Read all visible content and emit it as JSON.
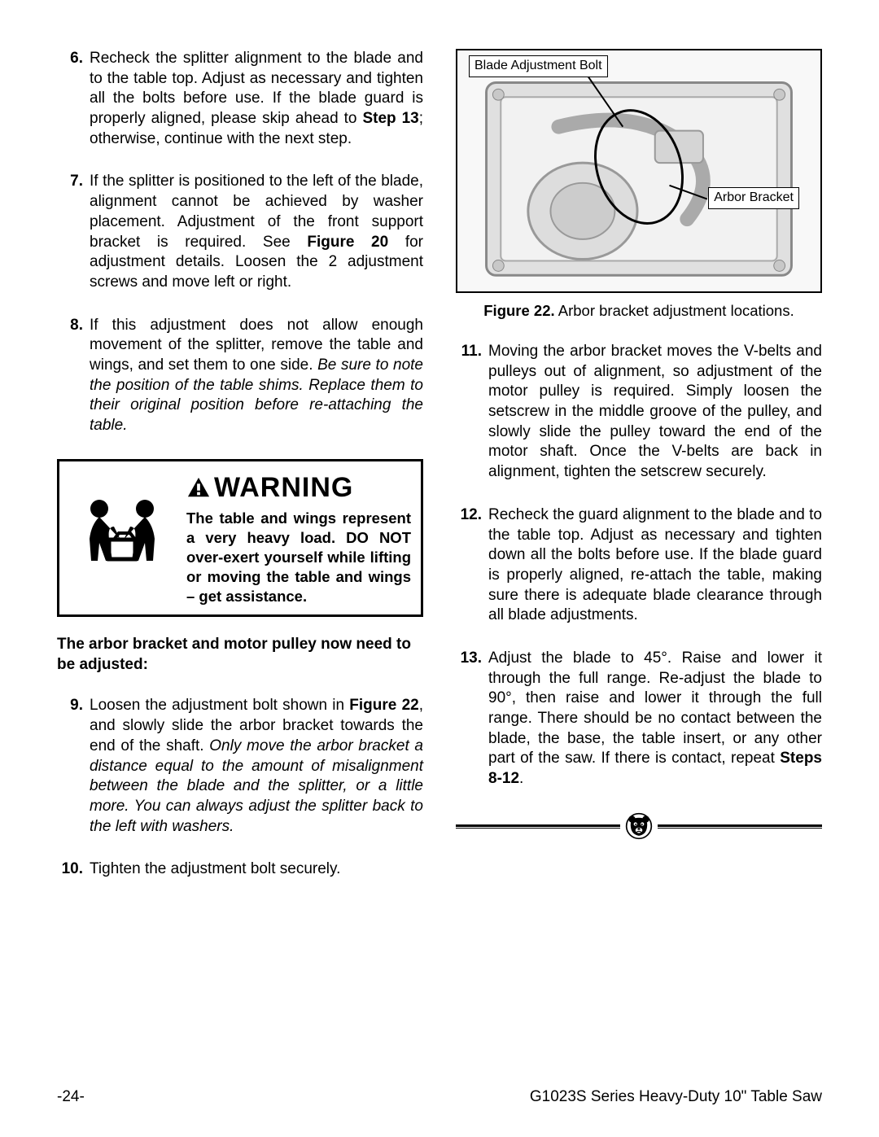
{
  "left": {
    "steps": [
      {
        "n": "6.",
        "parts": [
          {
            "t": "Recheck the splitter alignment to the blade and to the table top. Adjust as necessary and tighten all the bolts before use. If the blade guard is properly aligned, please skip ahead to "
          },
          {
            "t": "Step 13",
            "b": true
          },
          {
            "t": "; otherwise, continue with the next step."
          }
        ]
      },
      {
        "n": "7.",
        "parts": [
          {
            "t": "If the splitter is positioned to the left of the blade, alignment cannot be achieved by washer placement. Adjustment of the front support bracket is required. See "
          },
          {
            "t": "Figure 20",
            "b": true
          },
          {
            "t": " for adjustment details. Loosen the 2 adjustment screws and move left or right."
          }
        ]
      },
      {
        "n": "8.",
        "parts": [
          {
            "t": "If this adjustment does not allow enough movement of the splitter, remove the table and wings, and set them to one side. "
          },
          {
            "t": "Be sure to note the position of the table shims. Replace them to their original position before re-attaching the table.",
            "i": true
          }
        ]
      }
    ],
    "warning": {
      "title": "WARNING",
      "body": "The table and wings represent a very heavy load. DO NOT over-exert yourself while lifting or moving the table and wings – get assistance."
    },
    "inter": "The arbor bracket and motor pulley now need to be adjusted:",
    "steps2": [
      {
        "n": "9.",
        "parts": [
          {
            "t": "Loosen the adjustment bolt shown in "
          },
          {
            "t": "Figure 22",
            "b": true
          },
          {
            "t": ", and slowly slide the arbor bracket towards the end of the shaft. "
          },
          {
            "t": "Only move the arbor bracket a distance equal to the amount of misalignment between the blade and the splitter, or a little more. You can always adjust the splitter back to the left with washers.",
            "i": true
          }
        ]
      },
      {
        "n": "10.",
        "parts": [
          {
            "t": "Tighten the adjustment bolt securely."
          }
        ]
      }
    ]
  },
  "right": {
    "figure": {
      "label1": "Blade Adjustment Bolt",
      "label2": "Arbor Bracket",
      "caption_prefix": "Figure 22.",
      "caption_rest": " Arbor bracket adjustment locations."
    },
    "steps": [
      {
        "n": "11.",
        "parts": [
          {
            "t": "Moving the arbor bracket moves the V-belts and pulleys out of alignment, so adjustment of the motor pulley is required. Simply loosen the setscrew in the middle groove of the pulley, and slowly slide the pulley toward the end of the motor shaft. Once the V-belts are back in alignment, tighten the setscrew securely."
          }
        ]
      },
      {
        "n": "12.",
        "parts": [
          {
            "t": "Recheck the guard alignment to the blade and to the table top. Adjust as necessary and tighten down all the bolts before use. If the blade guard is properly aligned, re-attach the table, making sure there is adequate blade clearance through all blade adjustments."
          }
        ]
      },
      {
        "n": "13.",
        "parts": [
          {
            "t": "Adjust the blade to 45°. Raise and lower it through the full range. Re-adjust the blade to 90°, then raise and lower it through the full range. There should be no contact between the blade, the base, the table insert, or any other part of the saw. If there is contact, repeat "
          },
          {
            "t": "Steps 8-12",
            "b": true
          },
          {
            "t": "."
          }
        ]
      }
    ]
  },
  "footer": {
    "page": "-24-",
    "title": "G1023S Series Heavy-Duty 10\" Table Saw"
  }
}
